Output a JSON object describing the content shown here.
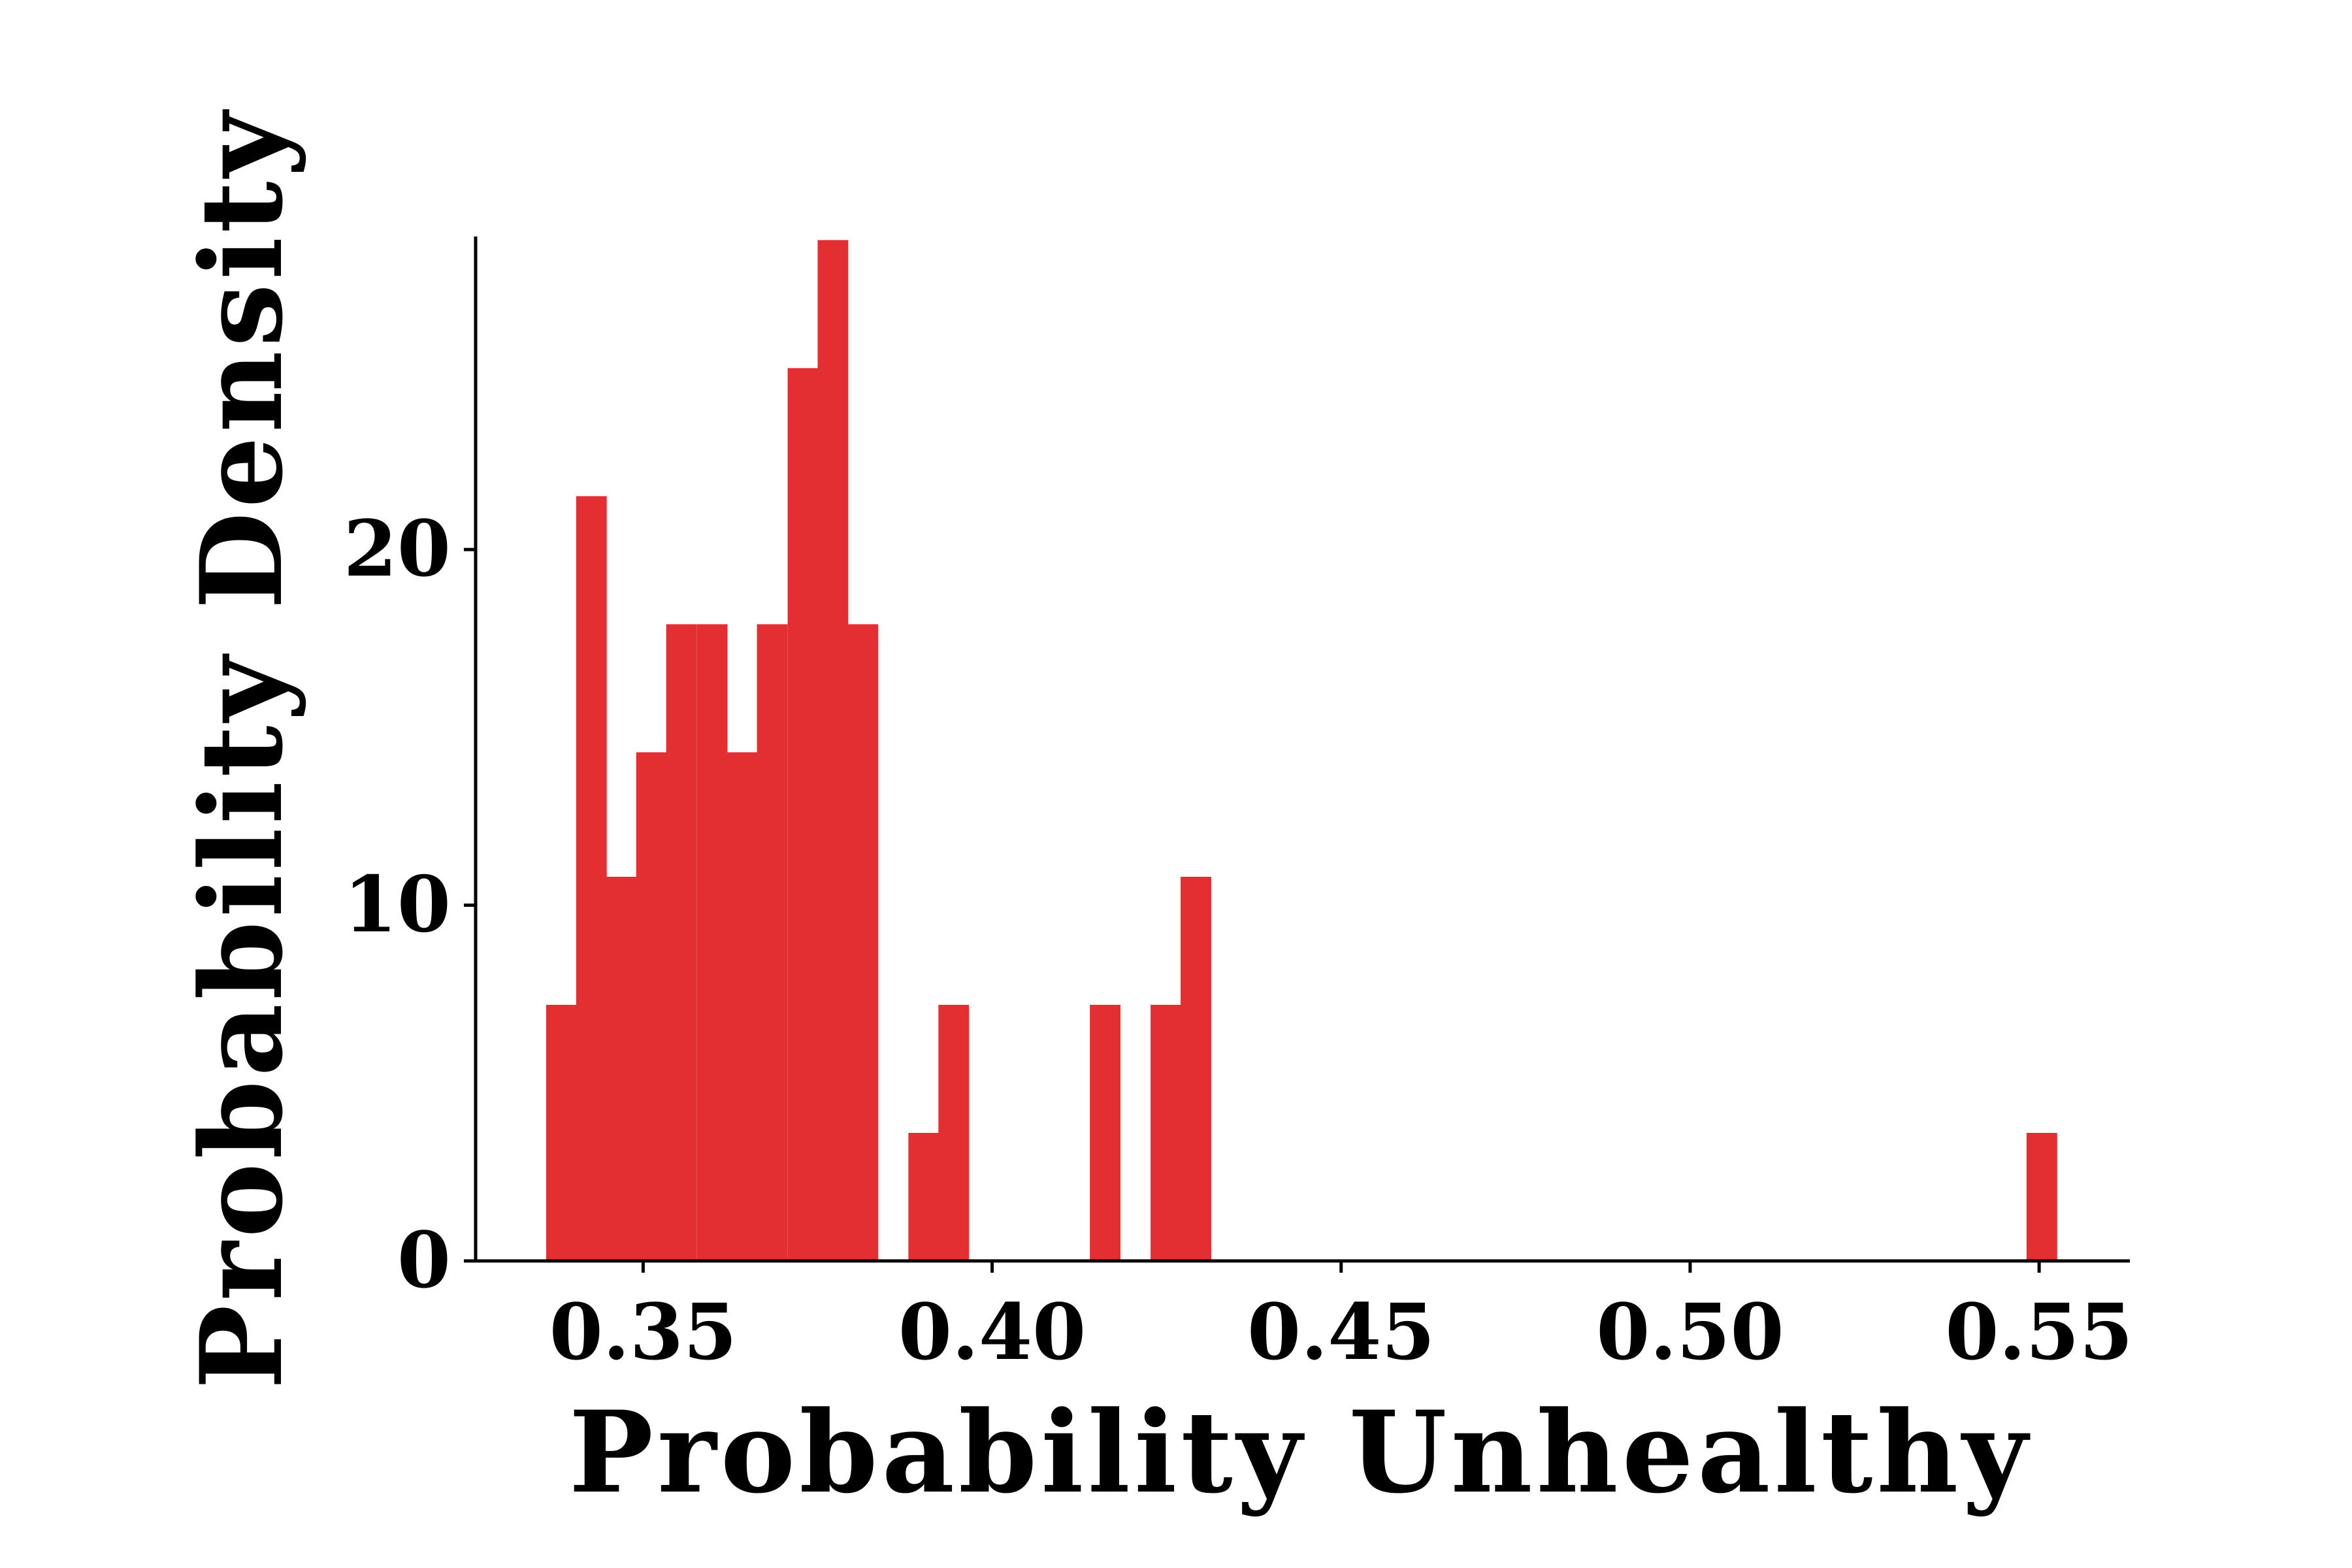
{
  "chart_data": {
    "type": "bar",
    "subtype": "histogram",
    "xlabel": "Probability Unhealthy",
    "ylabel": "Probability Density",
    "bar_color": "#e32f32",
    "axis_color": "#000000",
    "bin_width": 0.00433,
    "xlim": [
      0.326,
      0.563
    ],
    "ylim": [
      0,
      28.8
    ],
    "x_ticks": [
      {
        "value": 0.35,
        "label": "0.35"
      },
      {
        "value": 0.4,
        "label": "0.40"
      },
      {
        "value": 0.45,
        "label": "0.45"
      },
      {
        "value": 0.5,
        "label": "0.50"
      },
      {
        "value": 0.55,
        "label": "0.55"
      }
    ],
    "y_ticks": [
      {
        "value": 0,
        "label": "0"
      },
      {
        "value": 10,
        "label": "10"
      },
      {
        "value": 20,
        "label": "20"
      }
    ],
    "bins": [
      {
        "x0": 0.3361,
        "density": 7.2
      },
      {
        "x0": 0.3404,
        "density": 21.5
      },
      {
        "x0": 0.3447,
        "density": 10.8
      },
      {
        "x0": 0.349,
        "density": 14.3
      },
      {
        "x0": 0.3533,
        "density": 17.9
      },
      {
        "x0": 0.3577,
        "density": 17.9
      },
      {
        "x0": 0.362,
        "density": 14.3
      },
      {
        "x0": 0.3663,
        "density": 17.9
      },
      {
        "x0": 0.3707,
        "density": 25.1
      },
      {
        "x0": 0.375,
        "density": 28.7
      },
      {
        "x0": 0.3793,
        "density": 17.9
      },
      {
        "x0": 0.388,
        "density": 3.6
      },
      {
        "x0": 0.3923,
        "density": 7.2
      },
      {
        "x0": 0.414,
        "density": 7.2
      },
      {
        "x0": 0.4227,
        "density": 7.2
      },
      {
        "x0": 0.427,
        "density": 10.8
      },
      {
        "x0": 0.5482,
        "density": 3.6
      }
    ]
  }
}
